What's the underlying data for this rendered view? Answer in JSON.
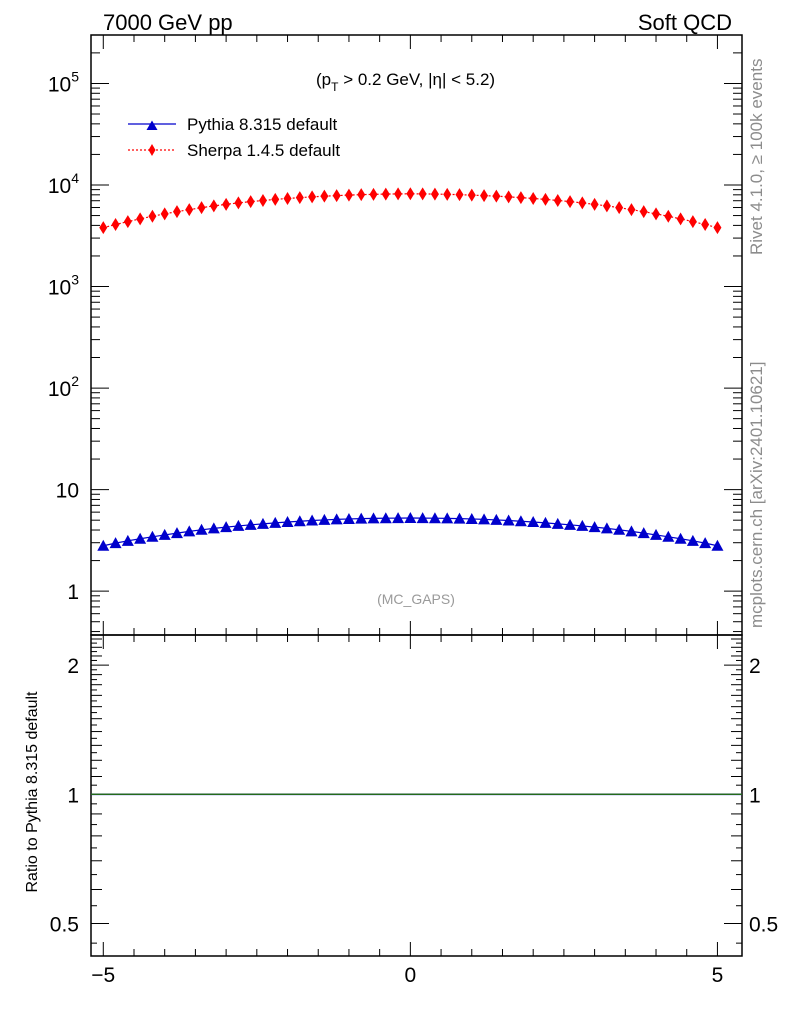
{
  "header": {
    "left": "7000 GeV pp",
    "right": "Soft QCD"
  },
  "annotation": {
    "cut_prefix": "(p",
    "cut_sub": "T",
    "cut_suffix": " > 0.2 GeV, |η| < 5.2)",
    "analysis_tag": "(MC_GAPS)"
  },
  "side_labels": {
    "rivet": "Rivet 4.1.0, ≥ 100k events",
    "mcplots": "mcplots.cern.ch [arXiv:2401.10621]"
  },
  "chart_data": [
    {
      "type": "scatter",
      "panel": "main",
      "title": "",
      "xlabel": "",
      "ylabel": "",
      "yscale": "log",
      "xlim": [
        -5.2,
        5.4
      ],
      "ylim": [
        0.37,
        300000
      ],
      "x_ticks": [
        -5,
        0,
        5
      ],
      "y_tick_labels": [
        {
          "value": 1,
          "base": "1",
          "exp": ""
        },
        {
          "value": 10,
          "base": "10",
          "exp": ""
        },
        {
          "value": 100,
          "base": "10",
          "exp": "2"
        },
        {
          "value": 1000,
          "base": "10",
          "exp": "3"
        },
        {
          "value": 10000,
          "base": "10",
          "exp": "4"
        },
        {
          "value": 100000,
          "base": "10",
          "exp": "5"
        }
      ],
      "legend_position": "top-left",
      "x": [
        -5.0,
        -4.8,
        -4.6,
        -4.4,
        -4.2,
        -4.0,
        -3.8,
        -3.6,
        -3.4,
        -3.2,
        -3.0,
        -2.8,
        -2.6,
        -2.4,
        -2.2,
        -2.0,
        -1.8,
        -1.6,
        -1.4,
        -1.2,
        -1.0,
        -0.8,
        -0.6,
        -0.4,
        -0.2,
        0.0,
        0.2,
        0.4,
        0.6,
        0.8,
        1.0,
        1.2,
        1.4,
        1.6,
        1.8,
        2.0,
        2.2,
        2.4,
        2.6,
        2.8,
        3.0,
        3.2,
        3.4,
        3.6,
        3.8,
        4.0,
        4.2,
        4.4,
        4.6,
        4.8,
        5.0
      ],
      "series": [
        {
          "name": "Pythia 8.315 default",
          "color": "#0000cc",
          "marker": "triangle",
          "line": "solid",
          "values": [
            2.8,
            2.97,
            3.13,
            3.28,
            3.43,
            3.58,
            3.73,
            3.88,
            4.02,
            4.15,
            4.27,
            4.39,
            4.5,
            4.6,
            4.7,
            4.8,
            4.88,
            4.96,
            5.03,
            5.09,
            5.14,
            5.18,
            5.21,
            5.23,
            5.24,
            5.25,
            5.24,
            5.23,
            5.21,
            5.18,
            5.14,
            5.09,
            5.03,
            4.96,
            4.88,
            4.8,
            4.7,
            4.6,
            4.5,
            4.39,
            4.27,
            4.15,
            4.02,
            3.88,
            3.73,
            3.58,
            3.43,
            3.28,
            3.13,
            2.97,
            2.8
          ]
        },
        {
          "name": "Sherpa 1.4.5 default",
          "color": "#ff0000",
          "marker": "diamond",
          "line": "dotted",
          "values": [
            3800,
            4080,
            4360,
            4640,
            4920,
            5200,
            5460,
            5720,
            5980,
            6220,
            6450,
            6660,
            6860,
            7040,
            7210,
            7370,
            7510,
            7640,
            7760,
            7860,
            7950,
            8030,
            8090,
            8140,
            8170,
            8190,
            8170,
            8140,
            8090,
            8030,
            7950,
            7860,
            7760,
            7640,
            7510,
            7370,
            7210,
            7040,
            6860,
            6660,
            6450,
            6220,
            5980,
            5720,
            5460,
            5200,
            4920,
            4640,
            4360,
            4080,
            3800
          ]
        }
      ]
    },
    {
      "type": "line",
      "panel": "ratio",
      "title": "",
      "xlabel": "",
      "ylabel": "Ratio to Pythia 8.315 default",
      "xlim": [
        -5.2,
        5.4
      ],
      "ylim": [
        0.42,
        2.35
      ],
      "x_tick_labels": [
        "−5",
        "0",
        "5"
      ],
      "y_tick_labels": [
        "0.5",
        "1",
        "2"
      ],
      "series": [
        {
          "name": "Pythia 8.315 default / Pythia 8.315 default",
          "color": "#0000cc",
          "value": 1.0
        },
        {
          "name": "Sherpa 1.4.5 default / Pythia 8.315 default",
          "color": "#2a7a00",
          "value": 1.0
        }
      ]
    }
  ]
}
